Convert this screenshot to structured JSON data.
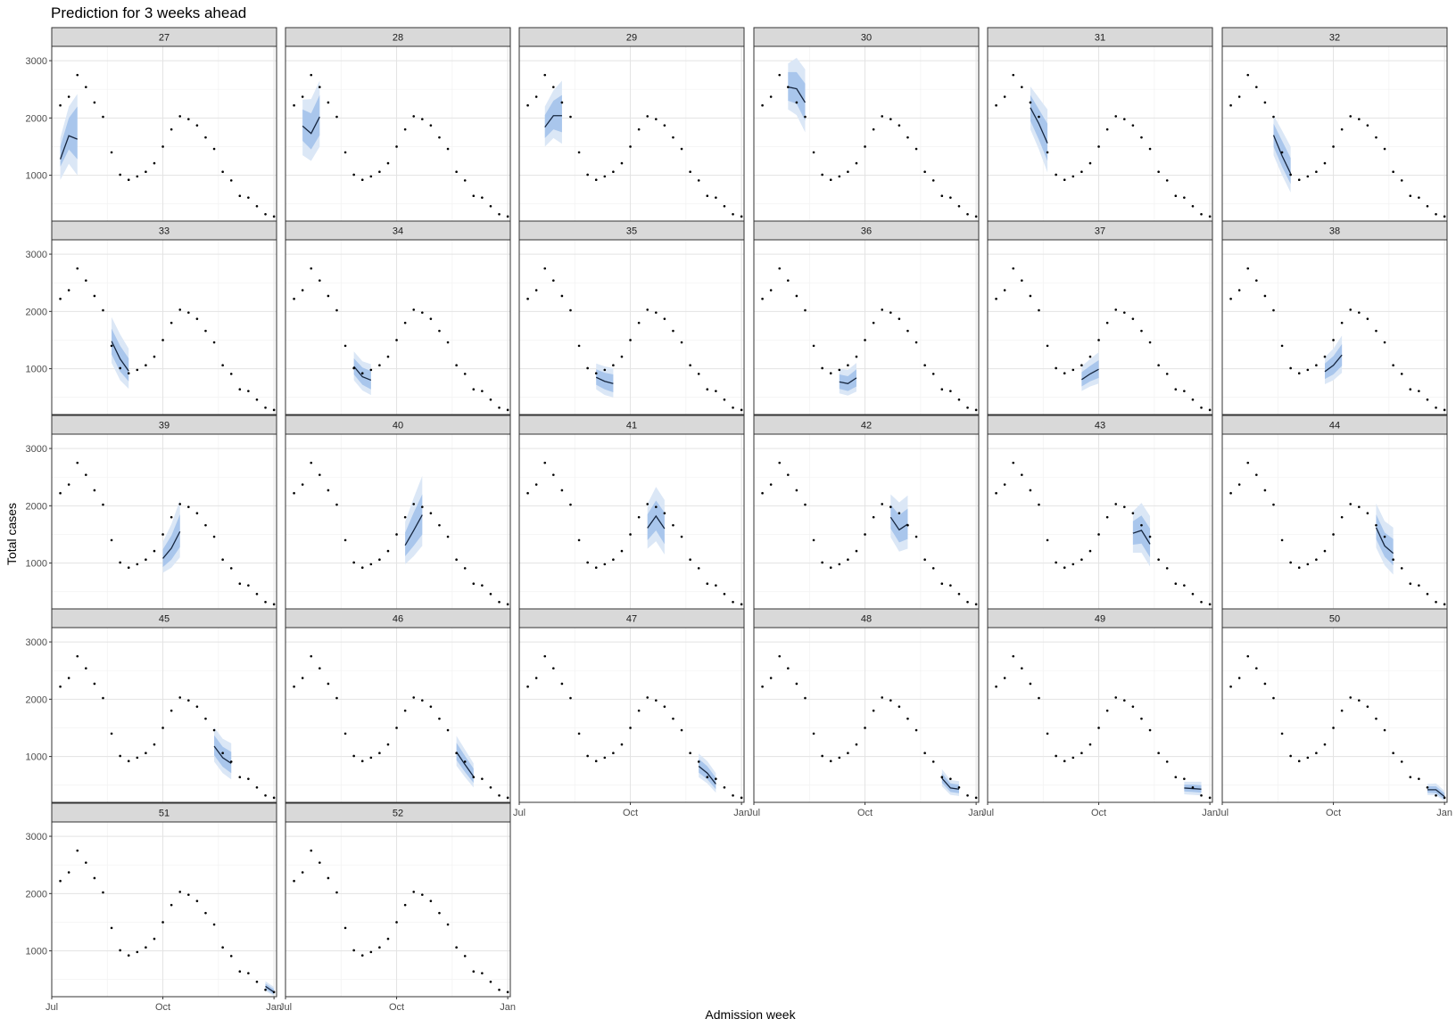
{
  "chart_data": {
    "type": "line",
    "title": "Prediction for 3 weeks ahead",
    "xlabel": "Admission week",
    "ylabel": "Total cases",
    "x_ticks": [
      {
        "label": "Jul",
        "week": 26
      },
      {
        "label": "Oct",
        "week": 39
      },
      {
        "label": "Jan",
        "week": 52
      }
    ],
    "xlim": [
      26,
      52.3
    ],
    "y_ticks": [
      1000,
      2000,
      3000
    ],
    "ylim": [
      200,
      3250
    ],
    "grid": true,
    "colors": {
      "band_outer": "#dbe7f6",
      "band_inner": "#a9c6ec",
      "median_line": "#16263f",
      "points": "#000000"
    },
    "observed": {
      "weeks": [
        27,
        28,
        29,
        30,
        31,
        32,
        33,
        34,
        35,
        36,
        37,
        38,
        39,
        40,
        41,
        42,
        43,
        44,
        45,
        46,
        47,
        48,
        49,
        50,
        51,
        52
      ],
      "values": [
        2220,
        2370,
        2750,
        2540,
        2270,
        2020,
        1400,
        1010,
        920,
        980,
        1060,
        1210,
        1500,
        1800,
        2030,
        1980,
        1870,
        1660,
        1460,
        1060,
        910,
        640,
        610,
        460,
        320,
        280
      ]
    },
    "facets": [
      {
        "label": "27",
        "weeks": [
          27,
          28,
          29
        ],
        "median": [
          1280,
          1690,
          1630
        ],
        "inner_lo": [
          1150,
          1450,
          1280
        ],
        "inner_hi": [
          1500,
          2000,
          2200
        ],
        "outer_lo": [
          920,
          1200,
          1000
        ],
        "outer_hi": [
          1650,
          2200,
          2420
        ]
      },
      {
        "label": "28",
        "weeks": [
          28,
          29,
          30
        ],
        "median": [
          1860,
          1730,
          2020
        ],
        "inner_lo": [
          1600,
          1450,
          1700
        ],
        "inner_hi": [
          2150,
          2080,
          2400
        ],
        "outer_lo": [
          1350,
          1250,
          1500
        ],
        "outer_hi": [
          2320,
          2330,
          2650
        ]
      },
      {
        "label": "29",
        "weeks": [
          29,
          30,
          31
        ],
        "median": [
          1840,
          2040,
          2040
        ],
        "inner_lo": [
          1650,
          1800,
          1750
        ],
        "inner_hi": [
          2050,
          2300,
          2400
        ],
        "outer_lo": [
          1500,
          1650,
          1550
        ],
        "outer_hi": [
          2200,
          2480,
          2650
        ]
      },
      {
        "label": "30",
        "weeks": [
          30,
          31,
          32
        ],
        "median": [
          2540,
          2510,
          2270
        ],
        "inner_lo": [
          2300,
          2250,
          1950
        ],
        "inner_hi": [
          2800,
          2800,
          2600
        ],
        "outer_lo": [
          2150,
          2050,
          1750
        ],
        "outer_hi": [
          2950,
          3050,
          2850
        ]
      },
      {
        "label": "31",
        "weeks": [
          31,
          32,
          33
        ],
        "median": [
          2180,
          1900,
          1560
        ],
        "inner_lo": [
          1950,
          1620,
          1250
        ],
        "inner_hi": [
          2400,
          2150,
          1900
        ],
        "outer_lo": [
          1800,
          1450,
          1050
        ],
        "outer_hi": [
          2550,
          2350,
          2150
        ]
      },
      {
        "label": "32",
        "weeks": [
          32,
          33,
          34
        ],
        "median": [
          1700,
          1340,
          1030
        ],
        "inner_lo": [
          1500,
          1150,
          850
        ],
        "inner_hi": [
          1900,
          1600,
          1300
        ],
        "outer_lo": [
          1350,
          1000,
          700
        ],
        "outer_hi": [
          2050,
          1780,
          1500
        ]
      },
      {
        "label": "33",
        "weeks": [
          33,
          34,
          35
        ],
        "median": [
          1480,
          1170,
          960
        ],
        "inner_lo": [
          1250,
          950,
          780
        ],
        "inner_hi": [
          1700,
          1400,
          1180
        ],
        "outer_lo": [
          1100,
          800,
          650
        ],
        "outer_hi": [
          1900,
          1600,
          1350
        ]
      },
      {
        "label": "34",
        "weeks": [
          34,
          35,
          36
        ],
        "median": [
          1040,
          860,
          800
        ],
        "inner_lo": [
          900,
          720,
          640
        ],
        "inner_hi": [
          1180,
          1020,
          960
        ],
        "outer_lo": [
          800,
          620,
          540
        ],
        "outer_hi": [
          1300,
          1130,
          1080
        ]
      },
      {
        "label": "35",
        "weeks": [
          35,
          36,
          37
        ],
        "median": [
          850,
          780,
          740
        ],
        "inner_lo": [
          720,
          640,
          590
        ],
        "inner_hi": [
          990,
          930,
          900
        ],
        "outer_lo": [
          640,
          540,
          500
        ],
        "outer_hi": [
          1090,
          1040,
          1010
        ]
      },
      {
        "label": "36",
        "weeks": [
          36,
          37,
          38
        ],
        "median": [
          770,
          740,
          840
        ],
        "inner_lo": [
          650,
          610,
          690
        ],
        "inner_hi": [
          900,
          870,
          990
        ],
        "outer_lo": [
          570,
          530,
          600
        ],
        "outer_hi": [
          1000,
          980,
          1100
        ]
      },
      {
        "label": "37",
        "weeks": [
          37,
          38,
          39
        ],
        "median": [
          810,
          910,
          990
        ],
        "inner_lo": [
          690,
          780,
          840
        ],
        "inner_hi": [
          940,
          1050,
          1150
        ],
        "outer_lo": [
          610,
          690,
          740
        ],
        "outer_hi": [
          1040,
          1170,
          1290
        ]
      },
      {
        "label": "38",
        "weeks": [
          38,
          39,
          40
        ],
        "median": [
          950,
          1060,
          1240
        ],
        "inner_lo": [
          820,
          900,
          1050
        ],
        "inner_hi": [
          1090,
          1220,
          1430
        ],
        "outer_lo": [
          730,
          800,
          930
        ],
        "outer_hi": [
          1200,
          1350,
          1580
        ]
      },
      {
        "label": "39",
        "weeks": [
          39,
          40,
          41
        ],
        "median": [
          1080,
          1260,
          1550
        ],
        "inner_lo": [
          930,
          1060,
          1280
        ],
        "inner_hi": [
          1240,
          1480,
          1850
        ],
        "outer_lo": [
          830,
          920,
          1100
        ],
        "outer_hi": [
          1370,
          1680,
          2100
        ]
      },
      {
        "label": "40",
        "weeks": [
          40,
          41,
          42
        ],
        "median": [
          1310,
          1570,
          1840
        ],
        "inner_lo": [
          1120,
          1300,
          1500
        ],
        "inner_hi": [
          1530,
          1880,
          2200
        ],
        "outer_lo": [
          980,
          1120,
          1300
        ],
        "outer_hi": [
          1720,
          2140,
          2520
        ]
      },
      {
        "label": "41",
        "weeks": [
          41,
          42,
          43
        ],
        "median": [
          1610,
          1820,
          1600
        ],
        "inner_lo": [
          1400,
          1570,
          1330
        ],
        "inner_hi": [
          1850,
          2090,
          1880
        ],
        "outer_lo": [
          1250,
          1380,
          1150
        ],
        "outer_hi": [
          2030,
          2330,
          2100
        ]
      },
      {
        "label": "42",
        "weeks": [
          42,
          43,
          44
        ],
        "median": [
          1800,
          1580,
          1680
        ],
        "inner_lo": [
          1600,
          1360,
          1420
        ],
        "inner_hi": [
          2020,
          1840,
          1950
        ],
        "outer_lo": [
          1450,
          1200,
          1250
        ],
        "outer_hi": [
          2200,
          2060,
          2180
        ]
      },
      {
        "label": "43",
        "weeks": [
          43,
          44,
          45
        ],
        "median": [
          1520,
          1570,
          1330
        ],
        "inner_lo": [
          1320,
          1340,
          1100
        ],
        "inner_hi": [
          1730,
          1830,
          1600
        ],
        "outer_lo": [
          1180,
          1180,
          940
        ],
        "outer_hi": [
          1900,
          2050,
          1820
        ]
      },
      {
        "label": "44",
        "weeks": [
          44,
          45,
          46
        ],
        "median": [
          1620,
          1300,
          1170
        ],
        "inner_lo": [
          1420,
          1110,
          960
        ],
        "inner_hi": [
          1850,
          1530,
          1420
        ],
        "outer_lo": [
          1270,
          960,
          800
        ],
        "outer_hi": [
          2040,
          1730,
          1620
        ]
      },
      {
        "label": "45",
        "weeks": [
          45,
          46,
          47
        ],
        "median": [
          1180,
          980,
          880
        ],
        "inner_lo": [
          1020,
          820,
          710
        ],
        "inner_hi": [
          1370,
          1170,
          1080
        ],
        "outer_lo": [
          910,
          710,
          600
        ],
        "outer_hi": [
          1510,
          1310,
          1230
        ]
      },
      {
        "label": "46",
        "weeks": [
          46,
          47,
          48
        ],
        "median": [
          1080,
          860,
          650
        ],
        "inner_lo": [
          940,
          730,
          540
        ],
        "inner_hi": [
          1240,
          1010,
          790
        ],
        "outer_lo": [
          840,
          640,
          460
        ],
        "outer_hi": [
          1360,
          1120,
          880
        ]
      },
      {
        "label": "47",
        "weeks": [
          47,
          48,
          49
        ],
        "median": [
          830,
          710,
          520
        ],
        "inner_lo": [
          720,
          600,
          430
        ],
        "inner_hi": [
          960,
          830,
          630
        ],
        "outer_lo": [
          640,
          530,
          370
        ],
        "outer_hi": [
          1050,
          920,
          710
        ]
      },
      {
        "label": "48",
        "weeks": [
          48,
          49,
          50
        ],
        "median": [
          620,
          450,
          430
        ],
        "inner_lo": [
          540,
          380,
          360
        ],
        "inner_hi": [
          710,
          530,
          510
        ],
        "outer_lo": [
          480,
          330,
          310
        ],
        "outer_hi": [
          780,
          590,
          570
        ]
      },
      {
        "label": "49",
        "weeks": [
          49,
          50,
          51
        ],
        "median": [
          450,
          440,
          430
        ],
        "inner_lo": [
          390,
          380,
          370
        ],
        "inner_hi": [
          510,
          510,
          500
        ],
        "outer_lo": [
          340,
          330,
          320
        ],
        "outer_hi": [
          560,
          560,
          560
        ]
      },
      {
        "label": "50",
        "weeks": [
          50,
          51,
          52
        ],
        "median": [
          420,
          420,
          300
        ],
        "inner_lo": [
          370,
          360,
          250
        ],
        "inner_hi": [
          480,
          480,
          360
        ],
        "outer_lo": [
          330,
          320,
          220
        ],
        "outer_hi": [
          520,
          530,
          400
        ]
      },
      {
        "label": "51",
        "weeks": [
          51,
          52
        ],
        "median": [
          380,
          280
        ],
        "inner_lo": [
          330,
          240
        ],
        "inner_hi": [
          430,
          330
        ],
        "outer_lo": [
          300,
          215
        ],
        "outer_hi": [
          470,
          370
        ]
      },
      {
        "label": "52",
        "weeks": [],
        "median": [],
        "inner_lo": [],
        "inner_hi": [],
        "outer_lo": [],
        "outer_hi": []
      }
    ]
  }
}
